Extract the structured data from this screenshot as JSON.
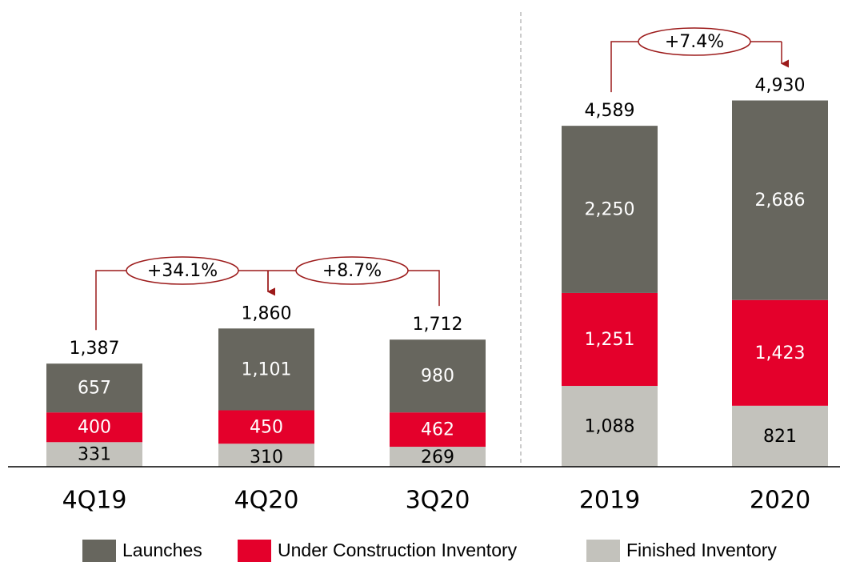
{
  "chart_data": {
    "type": "stacked_bar",
    "categories": [
      "4Q19",
      "4Q20",
      "3Q20",
      "2019",
      "2020"
    ],
    "series": [
      {
        "name": "Launches",
        "color": "#67665e",
        "values": [
          657,
          1101,
          980,
          2250,
          2686
        ],
        "value_labels": [
          "657",
          "1,101",
          "980",
          "2,250",
          "2,686"
        ]
      },
      {
        "name": "Under Construction Inventory",
        "color": "#e4002b",
        "values": [
          400,
          450,
          462,
          1251,
          1423
        ],
        "value_labels": [
          "400",
          "450",
          "462",
          "1,251",
          "1,423"
        ]
      },
      {
        "name": "Finished Inventory",
        "color": "#c3c2bc",
        "values": [
          331,
          310,
          269,
          1088,
          821
        ],
        "value_labels": [
          "331",
          "310",
          "269",
          "1,088",
          "821"
        ]
      }
    ],
    "totals": [
      1387,
      1860,
      1712,
      4589,
      4930
    ],
    "totals_labels": [
      "1,387",
      "1,860",
      "1,712",
      "4,589",
      "4,930"
    ],
    "annotations": [
      "+34.1%",
      "+8.7%",
      "+7.4%"
    ],
    "ylim": [
      0,
      5000
    ],
    "legend": "bottom"
  }
}
